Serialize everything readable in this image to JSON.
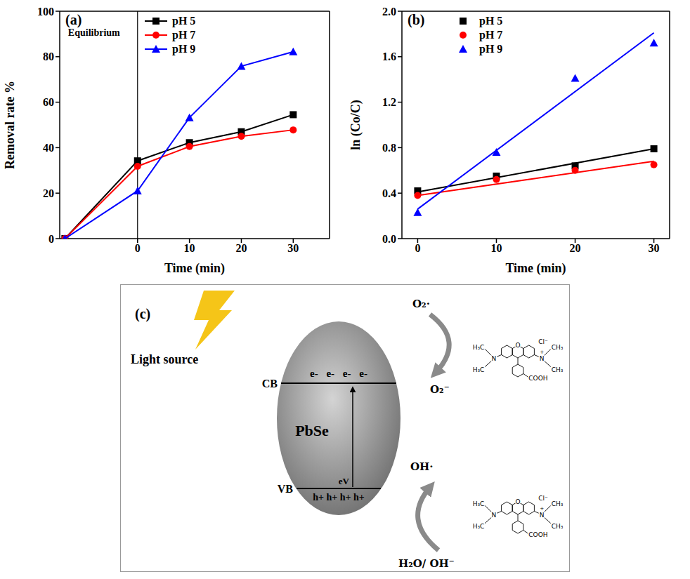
{
  "chart_data": [
    {
      "type": "line",
      "panel_label": "(a)",
      "xlabel": "Time (min)",
      "ylabel": "Removal rate %",
      "xlim": [
        -15,
        37
      ],
      "xticks": [
        0,
        10,
        20,
        30
      ],
      "ylim": [
        0,
        100
      ],
      "yticks": [
        0,
        20,
        40,
        60,
        80,
        100
      ],
      "x": [
        -14,
        0,
        10,
        20,
        30
      ],
      "series": [
        {
          "name": "pH 5",
          "color": "#000000",
          "marker": "square",
          "values": [
            0,
            34.2,
            42.2,
            47,
            54.5
          ]
        },
        {
          "name": "pH 7",
          "color": "#ff0000",
          "marker": "circle",
          "values": [
            0,
            31.8,
            40.5,
            45,
            47.8
          ]
        },
        {
          "name": "pH 9",
          "color": "#0000ff",
          "marker": "triangle",
          "values": [
            0,
            21,
            53.2,
            75.8,
            82.2
          ]
        }
      ],
      "annotations": [
        {
          "text": "Equilibrium",
          "x": 0
        }
      ],
      "legend": "upper left"
    },
    {
      "type": "scatter",
      "panel_label": "(b)",
      "xlabel": "Time (min)",
      "ylabel": "ln (Co/C)",
      "xlim": [
        -2,
        32
      ],
      "xticks": [
        0,
        10,
        20,
        30
      ],
      "ylim": [
        0,
        2
      ],
      "yticks": [
        {
          "value": 0,
          "label": "0.0"
        },
        0.4,
        0.8,
        1.2,
        1.6,
        {
          "value": 2,
          "label": "2.0"
        }
      ],
      "x": [
        0,
        10,
        20,
        30
      ],
      "series": [
        {
          "name": "pH 5",
          "color": "#000000",
          "marker": "square",
          "values": [
            0.42,
            0.55,
            0.64,
            0.79
          ],
          "fit_x": [
            0,
            30
          ],
          "fit_values": [
            0.41,
            0.79
          ]
        },
        {
          "name": "pH 7",
          "color": "#ff0000",
          "marker": "circle",
          "values": [
            0.38,
            0.52,
            0.6,
            0.65
          ],
          "fit_x": [
            0,
            30
          ],
          "fit_values": [
            0.38,
            0.68
          ]
        },
        {
          "name": "pH 9",
          "color": "#0000ff",
          "marker": "triangle",
          "values": [
            0.23,
            0.76,
            1.41,
            1.72
          ],
          "fit_x": [
            0,
            30
          ],
          "fit_values": [
            0.26,
            1.81
          ]
        }
      ],
      "legend": "upper left"
    }
  ],
  "diagram": {
    "panel_label": "(c)",
    "light": "Light source",
    "material": "PbSe",
    "cb": "CB",
    "vb": "VB",
    "electrons": "e- e- e- e-",
    "holes": "h+ h+ h+ h+",
    "gap": "eV",
    "superoxide_from": "O₂·",
    "superoxide": "O₂⁻",
    "hydroxyl": "OH·",
    "water": "H₂O/ OH⁻",
    "molecule": {
      "ring_oxygen": "O",
      "amine": "N",
      "charge": "+",
      "left_group": "H₃C",
      "right_group": "CH₃",
      "counter_ion": "Cl⁻",
      "acid": "COOH"
    }
  }
}
